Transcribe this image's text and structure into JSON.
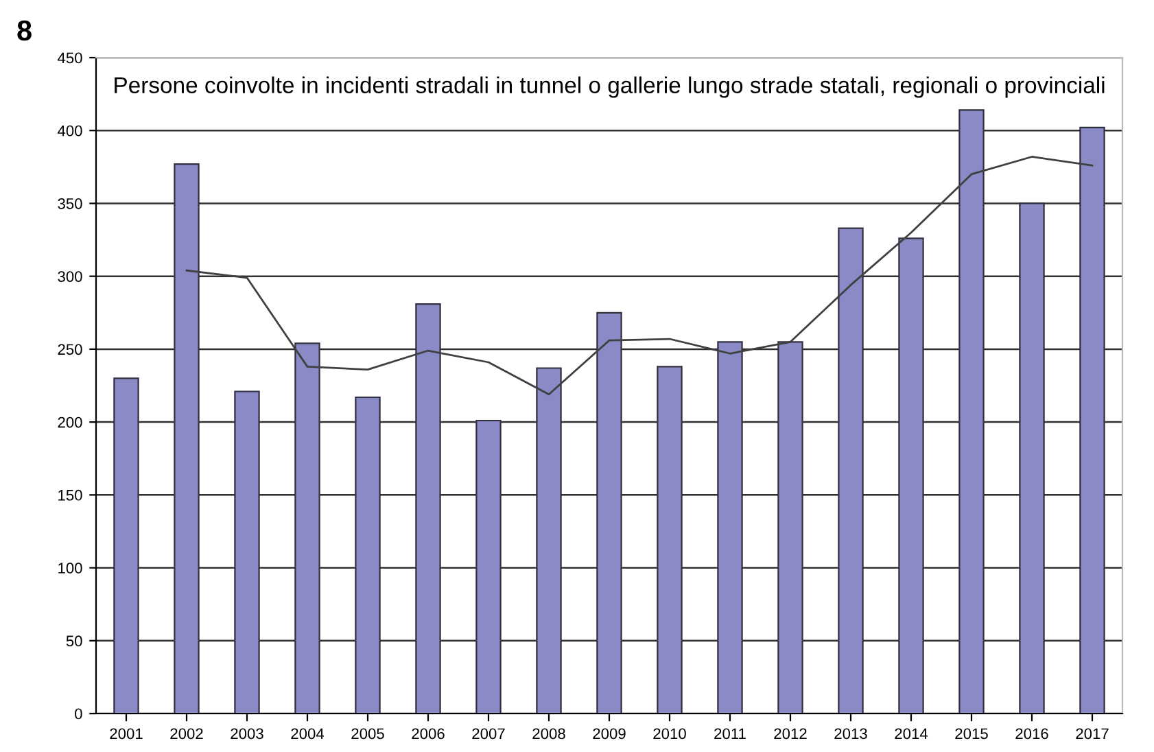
{
  "chart_data": {
    "type": "bar",
    "title": "Persone coinvolte in incidenti stradali in tunnel o gallerie lungo strade statali, regionali o provinciali",
    "annotations": [
      "8"
    ],
    "categories": [
      "2001",
      "2002",
      "2003",
      "2004",
      "2005",
      "2006",
      "2007",
      "2008",
      "2009",
      "2010",
      "2011",
      "2012",
      "2013",
      "2014",
      "2015",
      "2016",
      "2017"
    ],
    "series": [
      {
        "color": "#8a8ac6",
        "values": [
          230,
          377,
          221,
          254,
          217,
          281,
          201,
          237,
          275,
          238,
          255,
          255,
          333,
          326,
          414,
          350,
          402
        ]
      },
      {
        "type": "line",
        "color": "#404040",
        "values": [
          null,
          304,
          299,
          238,
          236,
          249,
          241,
          219,
          256,
          257,
          247,
          255,
          294,
          330,
          370,
          382,
          376
        ]
      }
    ],
    "ylim": [
      0,
      450
    ],
    "yticks": [
      0,
      50,
      100,
      150,
      200,
      250,
      300,
      350,
      400,
      450
    ],
    "grid": "y",
    "legend": false
  }
}
